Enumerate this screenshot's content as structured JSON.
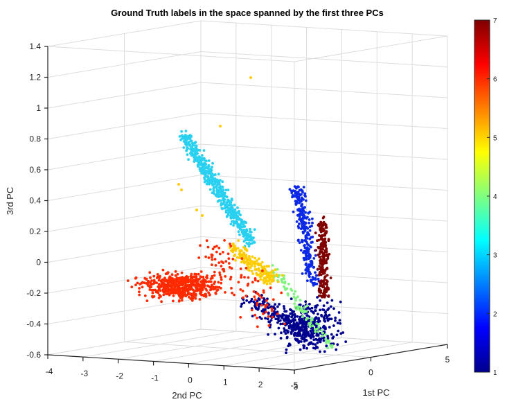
{
  "chart_data": {
    "type": "scatter",
    "title": "Ground Truth labels in the space spanned by the first three PCs",
    "xlabel": "1st PC",
    "ylabel": "2nd PC",
    "zlabel": "3rd PC",
    "x_ticks": [
      "-5",
      "0",
      "5"
    ],
    "y_ticks": [
      "-4",
      "-3",
      "-2",
      "-1",
      "0",
      "1",
      "2",
      "3"
    ],
    "z_ticks": [
      "1.4",
      "1.2",
      "1",
      "0.8",
      "0.6",
      "0.4",
      "0.2",
      "0",
      "-0.2",
      "-0.4",
      "-0.6"
    ],
    "xlim": [
      -5,
      5
    ],
    "ylim": [
      -4,
      3
    ],
    "zlim": [
      -0.6,
      1.4
    ],
    "grid": true,
    "colormap": "jet",
    "colorbar": {
      "min": 1,
      "max": 7,
      "ticks": [
        "7",
        "6",
        "5",
        "4",
        "3",
        "2",
        "1"
      ]
    },
    "series": [
      {
        "label": 1,
        "color": "#00008f",
        "cluster": {
          "x": 1.2,
          "y": 2.0,
          "z": -0.35
        },
        "n": 520
      },
      {
        "label": 2,
        "color": "#0a28e6",
        "cluster": {
          "x": 0.8,
          "y": 2.8,
          "z": 0.25
        },
        "n": 260
      },
      {
        "label": 3,
        "color": "#2ad0ef",
        "cluster": {
          "x": -1.5,
          "y": 0.8,
          "z": 0.55
        },
        "n": 560
      },
      {
        "label": 4,
        "color": "#7ff57f",
        "cluster": {
          "x": 0.5,
          "y": 2.3,
          "z": -0.1
        },
        "n": 90
      },
      {
        "label": 5,
        "color": "#ffcc00",
        "cluster": {
          "x": -0.3,
          "y": 1.6,
          "z": 0.0
        },
        "n": 190
      },
      {
        "label": 6,
        "color": "#ff2a00",
        "cluster": {
          "x": -3.0,
          "y": -0.2,
          "z": -0.15
        },
        "n": 640
      },
      {
        "label": 7,
        "color": "#800000",
        "cluster": {
          "x": 1.8,
          "y": 3.0,
          "z": 0.05
        },
        "n": 220
      }
    ]
  }
}
